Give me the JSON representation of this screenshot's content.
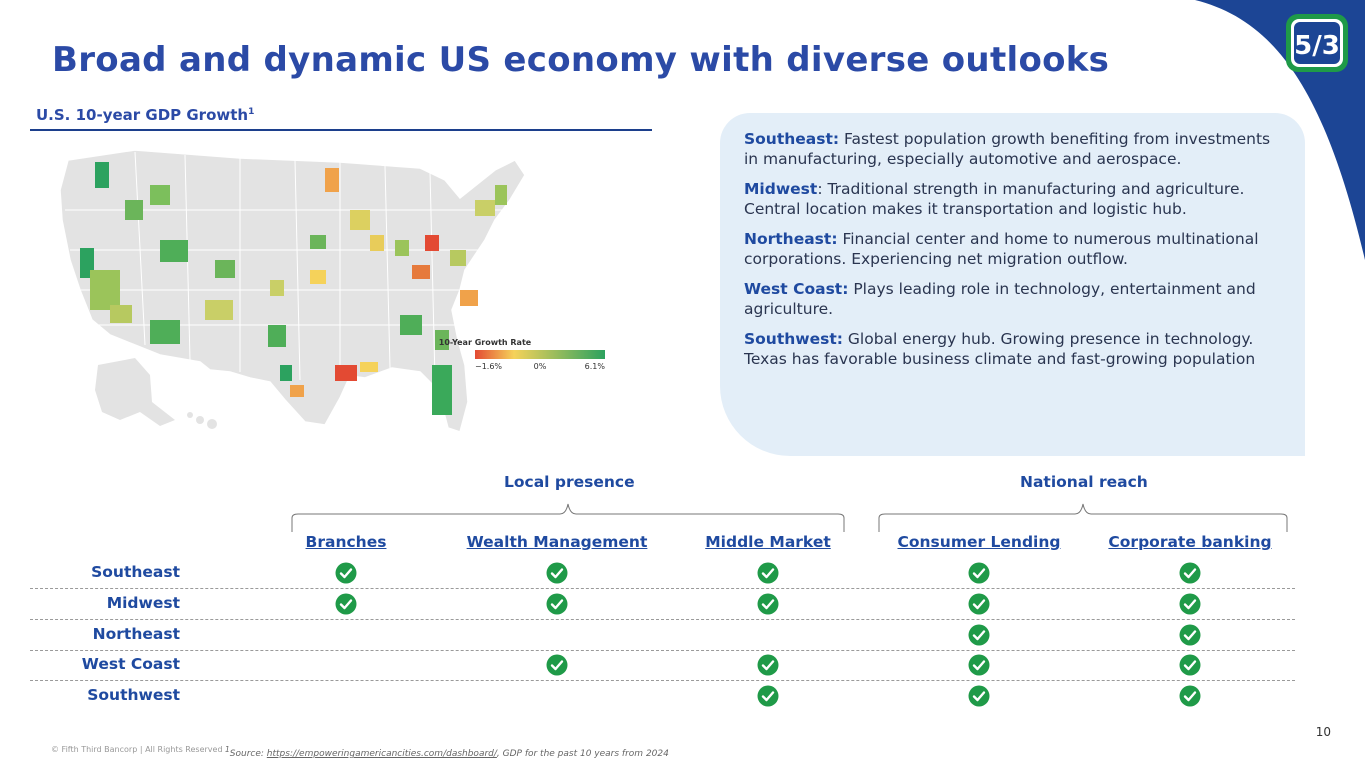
{
  "title": "Broad and dynamic US economy with diverse outlooks",
  "map_section": {
    "subtitle": "U.S. 10-year GDP Growth",
    "subtitle_footnote": "1",
    "legend": {
      "title": "10-Year Growth Rate",
      "min_label": "−1.6%",
      "mid_label": "0%",
      "max_label": "6.1%",
      "color_low": "#e34a33",
      "color_mid": "#f5d25a",
      "color_high": "#2ca25f"
    }
  },
  "regions_panel": {
    "items": [
      {
        "name": "Southeast:",
        "text": " Fastest population growth benefiting from investments in manufacturing, especially automotive and aerospace."
      },
      {
        "name": "Midwest",
        "text": ": Traditional strength in manufacturing and agriculture. Central location makes it transportation and logistic hub."
      },
      {
        "name": "Northeast:",
        "text": " Financial center and home to numerous multinational corporations. Experiencing net migration outflow."
      },
      {
        "name": "West Coast:",
        "text": " Plays leading role in technology, entertainment and agriculture."
      },
      {
        "name": "Southwest:",
        "text": " Global energy hub. Growing presence in technology. Texas has favorable business climate and fast-growing population"
      }
    ]
  },
  "coverage_table": {
    "groups": [
      "Local presence",
      "National reach"
    ],
    "columns": [
      "Branches",
      "Wealth Management",
      "Middle Market",
      "Consumer Lending",
      "Corporate banking"
    ],
    "rows": [
      {
        "region": "Southeast",
        "checks": [
          true,
          true,
          true,
          true,
          true
        ]
      },
      {
        "region": "Midwest",
        "checks": [
          true,
          true,
          true,
          true,
          true
        ]
      },
      {
        "region": "Northeast",
        "checks": [
          false,
          false,
          false,
          true,
          true
        ]
      },
      {
        "region": "West Coast",
        "checks": [
          false,
          true,
          true,
          true,
          true
        ]
      },
      {
        "region": "Southwest",
        "checks": [
          false,
          false,
          true,
          true,
          true
        ]
      }
    ],
    "check_color": "#1f9a48"
  },
  "footer": {
    "copyright": "© Fifth Third Bancorp | All Rights Reserved",
    "source_marker": "1",
    "source_prefix": "Source: ",
    "source_link": "https://empoweringamericancities.com/dashboard/",
    "source_suffix": ", GDP for the past 10 years from 2024",
    "page_number": "10"
  },
  "brand": {
    "primary": "#2b4aa6",
    "swoosh": "#1c4595",
    "logo_green": "#1f9a48",
    "logo_text": "5/3"
  }
}
